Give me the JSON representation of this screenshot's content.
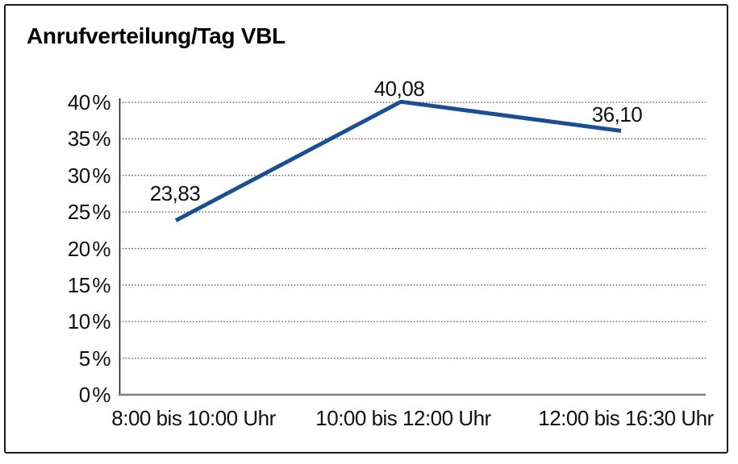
{
  "page": {
    "background": "#ffffff",
    "frame_border_color": "#1a1a1a"
  },
  "chart_data": {
    "type": "line",
    "title": "Anrufverteilung/Tag VBL",
    "categories": [
      "8:00 bis 10:00 Uhr",
      "10:00 bis 12:00 Uhr",
      "12:00 bis 16:30 Uhr"
    ],
    "values": [
      23.83,
      40.08,
      36.1
    ],
    "data_labels": [
      "23,83",
      "40,08",
      "36,10"
    ],
    "xlabel": "",
    "ylabel": "",
    "ylim": [
      0,
      40
    ],
    "ytick_values": [
      0,
      5,
      10,
      15,
      20,
      25,
      30,
      35,
      40
    ],
    "ytick_labels": [
      "0 %",
      "5 %",
      "10 %",
      "15 %",
      "20 %",
      "25 %",
      "30 %",
      "35 %",
      "40 %"
    ],
    "grid": "horizontal-dotted",
    "legend": "none",
    "line_color": "#1a4f94",
    "axis_color": "#1a1a1a",
    "baseline_color": "#7f7f7f",
    "grid_color": "#4a4a4a",
    "text_color": "#111111"
  }
}
